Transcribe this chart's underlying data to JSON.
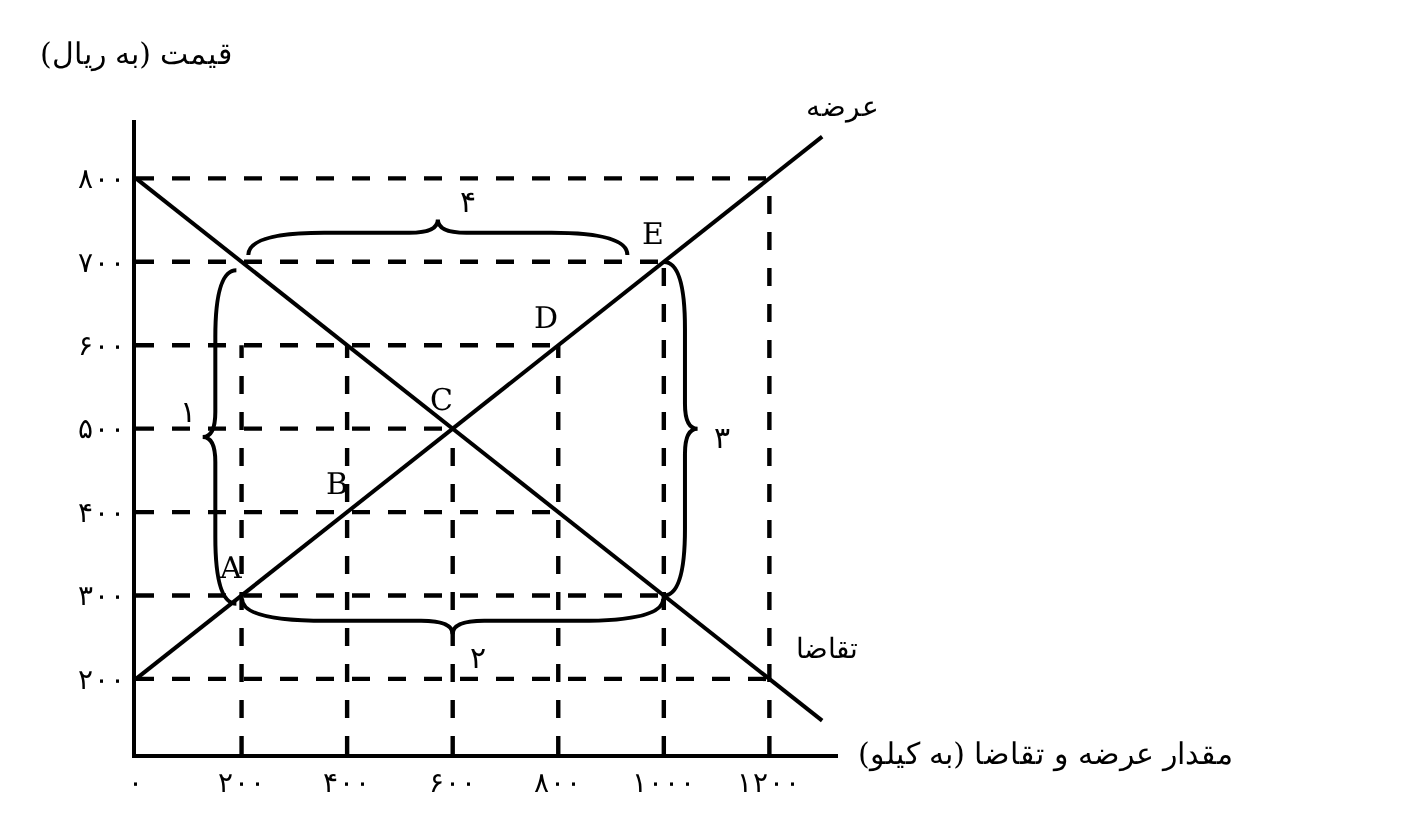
{
  "chart_data": {
    "type": "line",
    "xlabel": "مقدار عرضه و تقاضا (به کیلو)",
    "ylabel": "قیمت (به ریال)",
    "xlim": [
      0,
      1330
    ],
    "ylim": [
      110,
      870
    ],
    "xticks": [
      {
        "value": 0,
        "label": "۰"
      },
      {
        "value": 200,
        "label": "۲۰۰"
      },
      {
        "value": 400,
        "label": "۴۰۰"
      },
      {
        "value": 600,
        "label": "۶۰۰"
      },
      {
        "value": 800,
        "label": "۸۰۰"
      },
      {
        "value": 1000,
        "label": "۱۰۰۰"
      },
      {
        "value": 1200,
        "label": "۱۲۰۰"
      }
    ],
    "yticks": [
      {
        "value": 200,
        "label": "۲۰۰"
      },
      {
        "value": 300,
        "label": "۳۰۰"
      },
      {
        "value": 400,
        "label": "۴۰۰"
      },
      {
        "value": 500,
        "label": "۵۰۰"
      },
      {
        "value": 600,
        "label": "۶۰۰"
      },
      {
        "value": 700,
        "label": "۷۰۰"
      },
      {
        "value": 800,
        "label": "۸۰۰"
      }
    ],
    "marker": "none",
    "series": [
      {
        "name": "عرضه",
        "color": "#000000",
        "x": [
          0,
          1300
        ],
        "values": [
          200,
          850
        ]
      },
      {
        "name": "تقاضا",
        "color": "#000000",
        "x": [
          0,
          1300
        ],
        "values": [
          800,
          150
        ]
      },
      {
        "color": "#000000",
        "line_style": "dashed",
        "x": [
          0,
          1200
        ],
        "values": [
          800,
          800
        ]
      },
      {
        "color": "#000000",
        "line_style": "dashed",
        "x": [
          0,
          1000
        ],
        "values": [
          700,
          700
        ]
      },
      {
        "color": "#000000",
        "line_style": "dashed",
        "x": [
          0,
          800
        ],
        "values": [
          600,
          600
        ]
      },
      {
        "color": "#000000",
        "line_style": "dashed",
        "x": [
          0,
          600
        ],
        "values": [
          500,
          500
        ]
      },
      {
        "color": "#000000",
        "line_style": "dashed",
        "x": [
          0,
          800
        ],
        "values": [
          400,
          400
        ]
      },
      {
        "color": "#000000",
        "line_style": "dashed",
        "x": [
          0,
          1000
        ],
        "values": [
          300,
          300
        ]
      },
      {
        "color": "#000000",
        "line_style": "dashed",
        "x": [
          0,
          1200
        ],
        "values": [
          200,
          200
        ]
      },
      {
        "color": "#000000",
        "line_style": "dashed",
        "x": [
          200,
          200
        ],
        "values": [
          110,
          600
        ]
      },
      {
        "color": "#000000",
        "line_style": "dashed",
        "x": [
          400,
          400
        ],
        "values": [
          110,
          600
        ]
      },
      {
        "color": "#000000",
        "line_style": "dashed",
        "x": [
          600,
          600
        ],
        "values": [
          110,
          500
        ]
      },
      {
        "color": "#000000",
        "line_style": "dashed",
        "x": [
          800,
          800
        ],
        "values": [
          110,
          600
        ]
      },
      {
        "color": "#000000",
        "line_style": "dashed",
        "x": [
          1000,
          1000
        ],
        "values": [
          110,
          700
        ]
      },
      {
        "color": "#000000",
        "line_style": "dashed",
        "x": [
          1200,
          1200
        ],
        "values": [
          110,
          800
        ]
      }
    ],
    "annotations": [
      {
        "text": "A",
        "x": 200,
        "y": 300
      },
      {
        "text": "B",
        "x": 400,
        "y": 400
      },
      {
        "text": "C",
        "x": 600,
        "y": 500
      },
      {
        "text": "D",
        "x": 800,
        "y": 600
      },
      {
        "text": "E",
        "x": 1000,
        "y": 700
      },
      "۱",
      "۲",
      "۳",
      "۴"
    ]
  }
}
